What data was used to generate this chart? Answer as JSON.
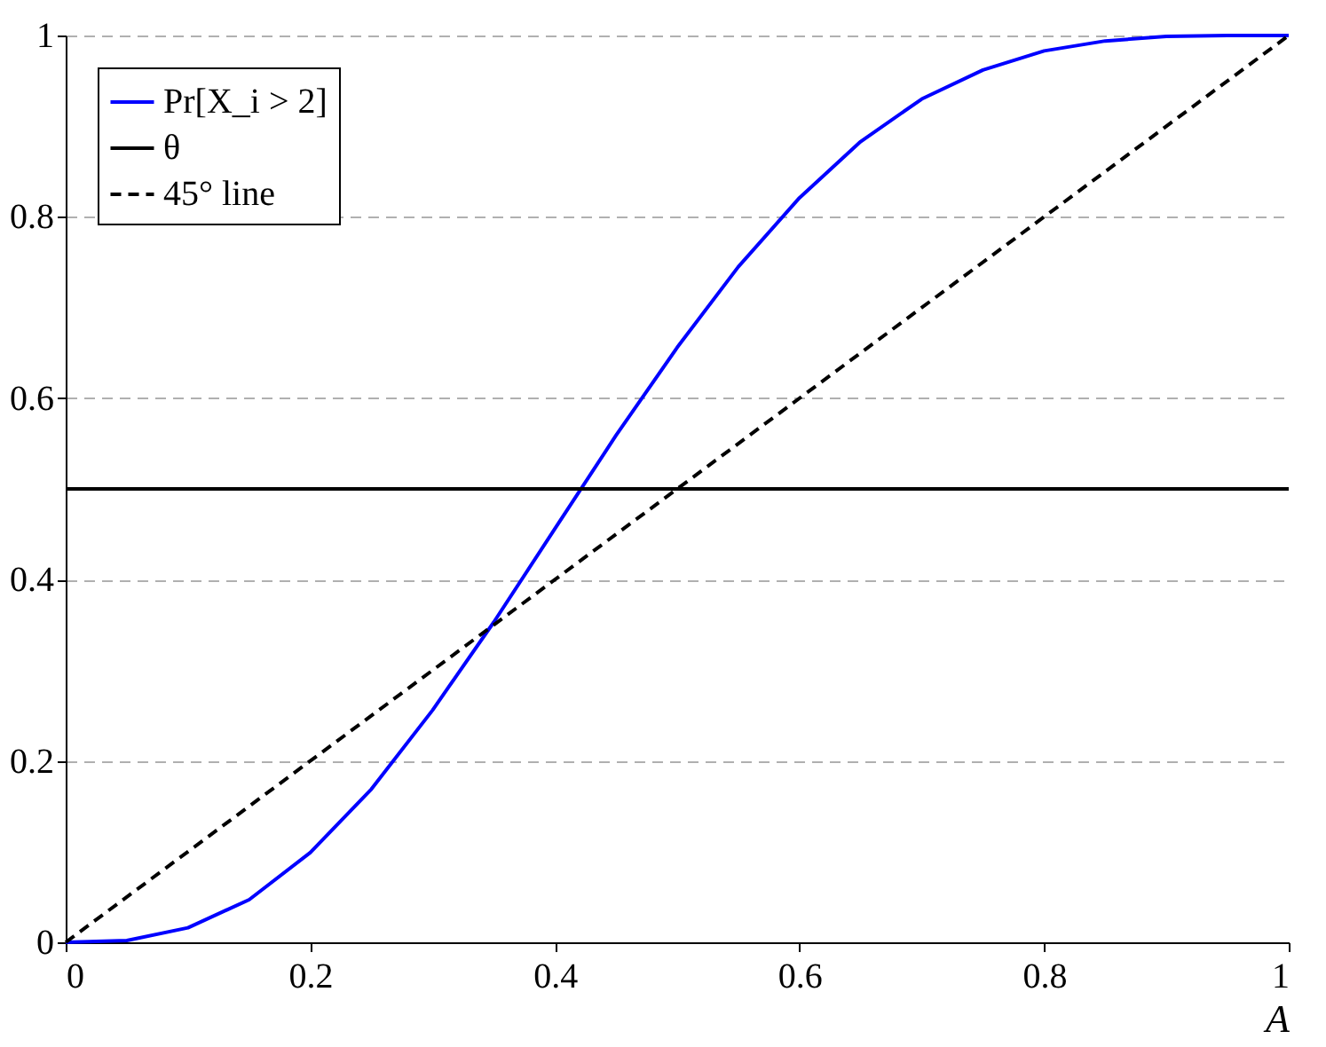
{
  "chart_data": {
    "type": "line",
    "xlabel": "A",
    "xlim": [
      0,
      1
    ],
    "ylim": [
      0,
      1
    ],
    "xticks": [
      0,
      0.2,
      0.4,
      0.6,
      0.8,
      1
    ],
    "yticks": [
      0,
      0.2,
      0.4,
      0.6,
      0.8,
      1
    ],
    "grid": "y",
    "legend": "top left",
    "marker": "none",
    "series": [
      {
        "name": "Pr[X_i > 2]",
        "color": "#0000ff",
        "line_style": "solid",
        "x": [
          0,
          0.05,
          0.1,
          0.15,
          0.2,
          0.25,
          0.3,
          0.35,
          0.4,
          0.45,
          0.5,
          0.55,
          0.6,
          0.65,
          0.7,
          0.75,
          0.8,
          0.85,
          0.9,
          0.95,
          1
        ],
        "values": [
          0,
          0.002,
          0.016,
          0.047,
          0.099,
          0.169,
          0.256,
          0.353,
          0.456,
          0.559,
          0.656,
          0.745,
          0.821,
          0.883,
          0.93,
          0.962,
          0.983,
          0.994,
          0.999,
          1,
          1
        ]
      },
      {
        "name": "θ",
        "color": "#000000",
        "line_style": "solid",
        "x": [
          0,
          1
        ],
        "values": [
          0.5,
          0.5
        ]
      },
      {
        "name": "45° line",
        "color": "#000000",
        "line_style": "dashed",
        "x": [
          0,
          1
        ],
        "values": [
          0,
          1
        ]
      }
    ]
  }
}
